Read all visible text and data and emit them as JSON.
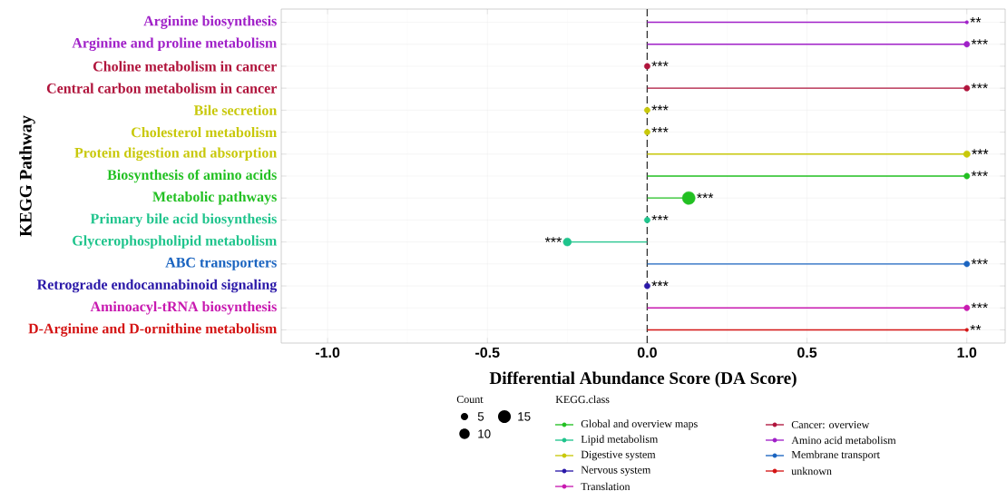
{
  "chart_data": {
    "type": "lollipop",
    "orientation": "horizontal",
    "xlabel": "Differential Abundance Score (DA Score)",
    "ylabel": "KEGG Pathway",
    "legend_title": "KEGG.class",
    "legend": "bottom",
    "grid": true,
    "marker": "circle",
    "categories": [
      "Arginine biosynthesis",
      "Arginine and proline metabolism",
      "Choline metabolism in cancer",
      "Central carbon metabolism in cancer",
      "Bile secretion",
      "Cholesterol metabolism",
      "Protein digestion and absorption",
      "Biosynthesis of amino acids",
      "Metabolic pathways",
      "Primary bile acid biosynthesis",
      "Glycerophospholipid metabolism",
      "ABC transporters",
      "Retrograde endocannabinoid signaling",
      "Aminoacyl-tRNA biosynthesis",
      "D-Arginine and D-ornithine metabolism"
    ],
    "xlim": [
      -1.145,
      1.12
    ],
    "xticks": [
      {
        "value": -1,
        "label": "-1.0"
      },
      {
        "value": -0.5,
        "label": "-0.5"
      },
      {
        "value": 0,
        "label": "0.0"
      },
      {
        "value": 0.5,
        "label": "0.5"
      },
      {
        "value": 1,
        "label": "1.0"
      }
    ],
    "size_legend": [
      5,
      10,
      15
    ],
    "annotations": [
      "Count"
    ],
    "ref_lines": [
      {
        "axis": "x",
        "value": 0,
        "color": "#333333",
        "line_style": "dashed"
      }
    ],
    "series": [
      {
        "name": "Global and overview maps",
        "color": "#22c022",
        "values": [
          null,
          null,
          null,
          null,
          null,
          null,
          null,
          1,
          0.13,
          null,
          null,
          null,
          null,
          null,
          null
        ],
        "sizes": [
          null,
          null,
          null,
          null,
          null,
          null,
          null,
          3,
          15,
          null,
          null,
          null,
          null,
          null,
          null
        ],
        "value_labels": [
          null,
          null,
          null,
          null,
          null,
          null,
          null,
          "***",
          "***",
          null,
          null,
          null,
          null,
          null,
          null
        ]
      },
      {
        "name": "Lipid metabolism",
        "color": "#1fc48c",
        "values": [
          null,
          null,
          null,
          null,
          null,
          null,
          null,
          null,
          null,
          0,
          -0.25,
          null,
          null,
          null,
          null
        ],
        "sizes": [
          null,
          null,
          null,
          null,
          null,
          null,
          null,
          null,
          null,
          3,
          6,
          null,
          null,
          null,
          null
        ],
        "value_labels": [
          null,
          null,
          null,
          null,
          null,
          null,
          null,
          null,
          null,
          "***",
          "***",
          null,
          null,
          null,
          null
        ]
      },
      {
        "name": "Digestive system",
        "color": "#c8c80a",
        "values": [
          null,
          null,
          null,
          null,
          0,
          0,
          1,
          null,
          null,
          null,
          null,
          null,
          null,
          null,
          null
        ],
        "sizes": [
          null,
          null,
          null,
          null,
          3,
          3,
          4,
          null,
          null,
          null,
          null,
          null,
          null,
          null,
          null
        ],
        "value_labels": [
          null,
          null,
          null,
          null,
          "***",
          "***",
          "***",
          null,
          null,
          null,
          null,
          null,
          null,
          null,
          null
        ]
      },
      {
        "name": "Nervous system",
        "color": "#2a18a8",
        "values": [
          null,
          null,
          null,
          null,
          null,
          null,
          null,
          null,
          null,
          null,
          null,
          null,
          0,
          null,
          null
        ],
        "sizes": [
          null,
          null,
          null,
          null,
          null,
          null,
          null,
          null,
          null,
          null,
          null,
          null,
          3,
          null,
          null
        ],
        "value_labels": [
          null,
          null,
          null,
          null,
          null,
          null,
          null,
          null,
          null,
          null,
          null,
          null,
          "***",
          null,
          null
        ]
      },
      {
        "name": "Translation",
        "color": "#c81ab0",
        "values": [
          null,
          null,
          null,
          null,
          null,
          null,
          null,
          null,
          null,
          null,
          null,
          null,
          null,
          1,
          null
        ],
        "sizes": [
          null,
          null,
          null,
          null,
          null,
          null,
          null,
          null,
          null,
          null,
          null,
          null,
          null,
          3,
          null
        ],
        "value_labels": [
          null,
          null,
          null,
          null,
          null,
          null,
          null,
          null,
          null,
          null,
          null,
          null,
          null,
          "***",
          null
        ]
      },
      {
        "name": "Cancer: overview",
        "color": "#b0143c",
        "values": [
          null,
          null,
          0,
          1,
          null,
          null,
          null,
          null,
          null,
          null,
          null,
          null,
          null,
          null,
          null
        ],
        "sizes": [
          null,
          null,
          3,
          3,
          null,
          null,
          null,
          null,
          null,
          null,
          null,
          null,
          null,
          null,
          null
        ],
        "value_labels": [
          null,
          null,
          "***",
          "***",
          null,
          null,
          null,
          null,
          null,
          null,
          null,
          null,
          null,
          null,
          null
        ]
      },
      {
        "name": "Amino acid metabolism",
        "color": "#a020c8",
        "values": [
          1,
          1,
          null,
          null,
          null,
          null,
          null,
          null,
          null,
          null,
          null,
          null,
          null,
          null,
          null
        ],
        "sizes": [
          1,
          3,
          null,
          null,
          null,
          null,
          null,
          null,
          null,
          null,
          null,
          null,
          null,
          null,
          null
        ],
        "value_labels": [
          "**",
          "***",
          null,
          null,
          null,
          null,
          null,
          null,
          null,
          null,
          null,
          null,
          null,
          null,
          null
        ]
      },
      {
        "name": "Membrane transport",
        "color": "#1a64c0",
        "values": [
          null,
          null,
          null,
          null,
          null,
          null,
          null,
          null,
          null,
          null,
          null,
          1,
          null,
          null,
          null
        ],
        "sizes": [
          null,
          null,
          null,
          null,
          null,
          null,
          null,
          null,
          null,
          null,
          null,
          3,
          null,
          null,
          null
        ],
        "value_labels": [
          null,
          null,
          null,
          null,
          null,
          null,
          null,
          null,
          null,
          null,
          null,
          "***",
          null,
          null,
          null
        ]
      },
      {
        "name": "unknown",
        "color": "#d41414",
        "values": [
          null,
          null,
          null,
          null,
          null,
          null,
          null,
          null,
          null,
          null,
          null,
          null,
          null,
          null,
          1
        ],
        "sizes": [
          null,
          null,
          null,
          null,
          null,
          null,
          null,
          null,
          null,
          null,
          null,
          null,
          null,
          null,
          1
        ],
        "value_labels": [
          null,
          null,
          null,
          null,
          null,
          null,
          null,
          null,
          null,
          null,
          null,
          null,
          null,
          null,
          "**"
        ]
      }
    ]
  }
}
